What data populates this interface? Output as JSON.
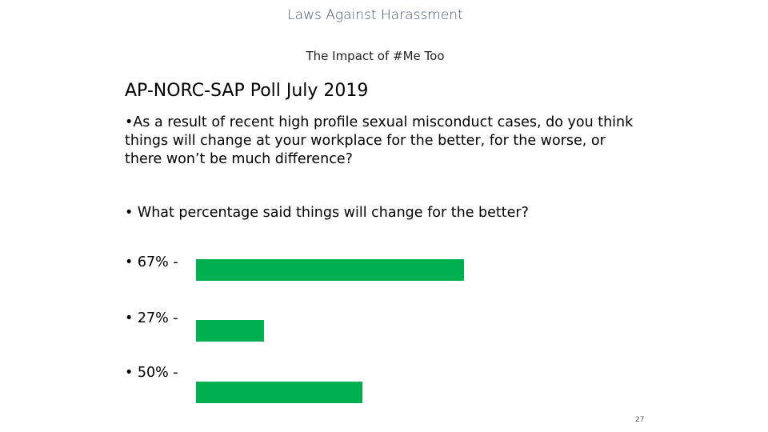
{
  "header": {
    "title": "Laws Against Harassment",
    "subtitle": "The Impact of #Me Too"
  },
  "poll": {
    "heading": "AP-NORC-SAP Poll  July 2019",
    "question": "•As a result of recent high profile sexual misconduct cases, do you think things will change at your workplace for the better, for the worse, or there won’t be much difference?",
    "prompt": "•  What percentage said things will change for the better?",
    "answers": [
      "•  67% -",
      "•  27% -",
      "•  50% -"
    ]
  },
  "page_number": "27"
}
